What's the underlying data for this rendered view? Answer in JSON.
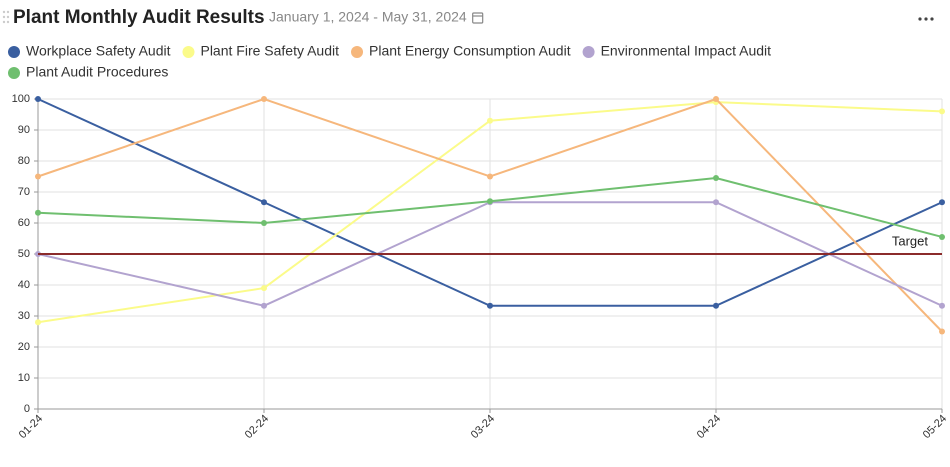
{
  "chart_data": {
    "type": "line",
    "title": "Plant Monthly Audit Results",
    "subtitle": "January 1, 2024 - May 31, 2024",
    "categories": [
      "01-24",
      "02-24",
      "03-24",
      "04-24",
      "05-24"
    ],
    "series": [
      {
        "name": "Workplace Safety Audit",
        "color": "#3a5fa0",
        "values": [
          100,
          66.7,
          33.3,
          33.3,
          66.7
        ]
      },
      {
        "name": "Plant Fire Safety Audit",
        "color": "#fbfb8a",
        "values": [
          28,
          39,
          93,
          99,
          96
        ]
      },
      {
        "name": "Plant Energy Consumption Audit",
        "color": "#f6b77c",
        "values": [
          75,
          100,
          75,
          100,
          25
        ]
      },
      {
        "name": "Environmental Impact Audit",
        "color": "#b2a3cf",
        "values": [
          50,
          33.3,
          66.7,
          66.7,
          33.3
        ]
      },
      {
        "name": "Plant Audit Procedures",
        "color": "#6fbf6f",
        "values": [
          63.3,
          60,
          67,
          74.5,
          55.5
        ]
      }
    ],
    "target": {
      "label": "Target",
      "value": 50,
      "color": "#8b2b2b"
    },
    "ylim": [
      0,
      100
    ],
    "yticks": [
      0,
      10,
      20,
      30,
      40,
      50,
      60,
      70,
      80,
      90,
      100
    ],
    "grid": true
  }
}
